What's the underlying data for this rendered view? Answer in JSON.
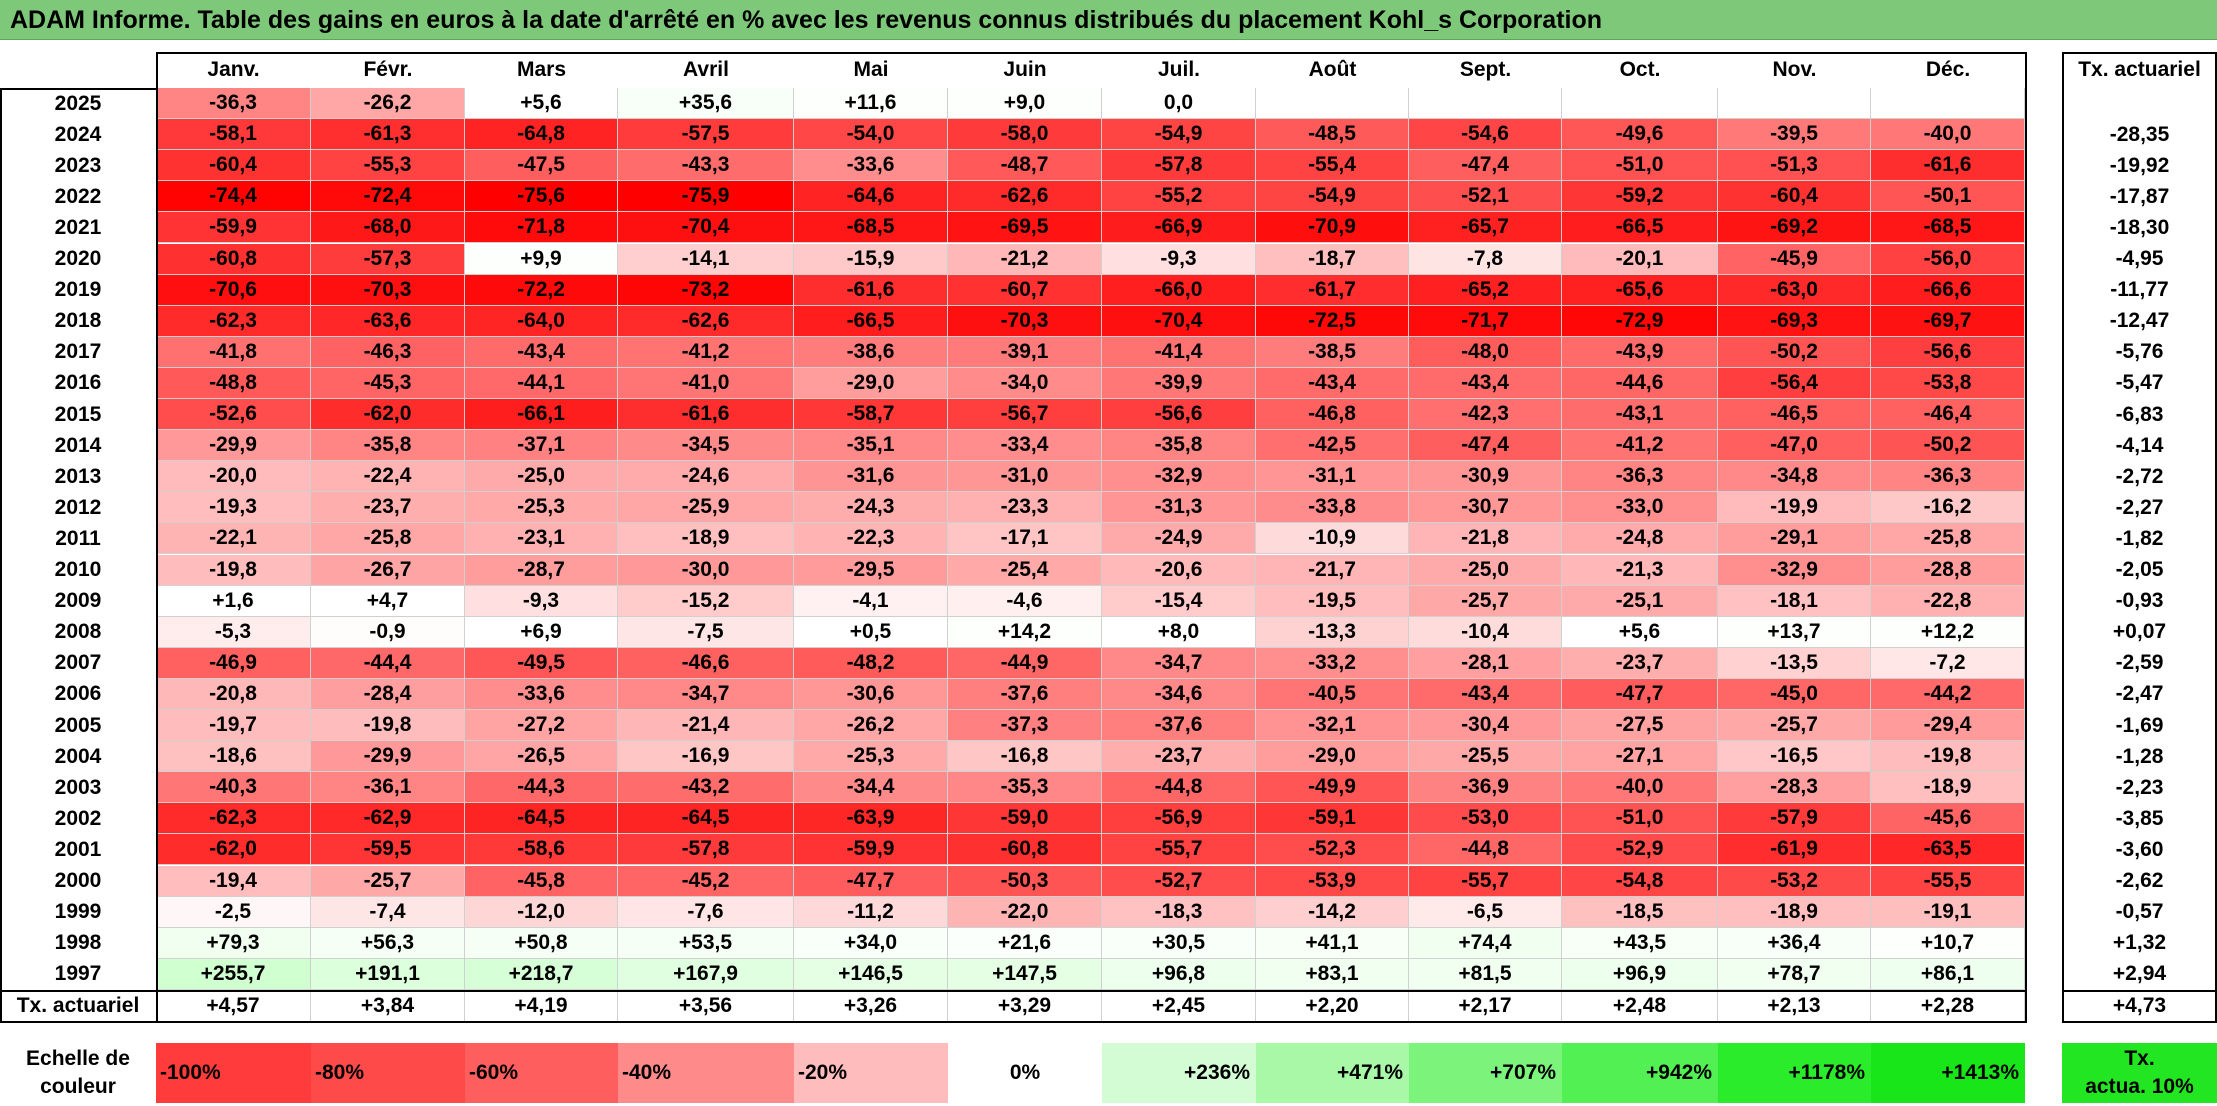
{
  "title": "ADAM Informe. Table des gains en euros à la date d'arrêté en % avec les revenus connus distribués du placement Kohl_s Corporation",
  "months": [
    "Janv.",
    "Févr.",
    "Mars",
    "Avril",
    "Mai",
    "Juin",
    "Juil.",
    "Août",
    "Sept.",
    "Oct.",
    "Nov.",
    "Déc."
  ],
  "right_header": "Tx. actuariel",
  "rows": [
    {
      "year": "2025",
      "values": [
        "-36,3",
        "-26,2",
        "+5,6",
        "+35,6",
        "+11,6",
        "+9,0",
        "0,0",
        "",
        "",
        "",
        "",
        ""
      ],
      "rate": ""
    },
    {
      "year": "2024",
      "values": [
        "-58,1",
        "-61,3",
        "-64,8",
        "-57,5",
        "-54,0",
        "-58,0",
        "-54,9",
        "-48,5",
        "-54,6",
        "-49,6",
        "-39,5",
        "-40,0"
      ],
      "rate": "-28,35"
    },
    {
      "year": "2023",
      "values": [
        "-60,4",
        "-55,3",
        "-47,5",
        "-43,3",
        "-33,6",
        "-48,7",
        "-57,8",
        "-55,4",
        "-47,4",
        "-51,0",
        "-51,3",
        "-61,6"
      ],
      "rate": "-19,92"
    },
    {
      "year": "2022",
      "values": [
        "-74,4",
        "-72,4",
        "-75,6",
        "-75,9",
        "-64,6",
        "-62,6",
        "-55,2",
        "-54,9",
        "-52,1",
        "-59,2",
        "-60,4",
        "-50,1"
      ],
      "rate": "-17,87"
    },
    {
      "year": "2021",
      "values": [
        "-59,9",
        "-68,0",
        "-71,8",
        "-70,4",
        "-68,5",
        "-69,5",
        "-66,9",
        "-70,9",
        "-65,7",
        "-66,5",
        "-69,2",
        "-68,5"
      ],
      "rate": "-18,30"
    },
    {
      "year": "2020",
      "values": [
        "-60,8",
        "-57,3",
        "+9,9",
        "-14,1",
        "-15,9",
        "-21,2",
        "-9,3",
        "-18,7",
        "-7,8",
        "-20,1",
        "-45,9",
        "-56,0"
      ],
      "rate": "-4,95"
    },
    {
      "year": "2019",
      "values": [
        "-70,6",
        "-70,3",
        "-72,2",
        "-73,2",
        "-61,6",
        "-60,7",
        "-66,0",
        "-61,7",
        "-65,2",
        "-65,6",
        "-63,0",
        "-66,6"
      ],
      "rate": "-11,77"
    },
    {
      "year": "2018",
      "values": [
        "-62,3",
        "-63,6",
        "-64,0",
        "-62,6",
        "-66,5",
        "-70,3",
        "-70,4",
        "-72,5",
        "-71,7",
        "-72,9",
        "-69,3",
        "-69,7"
      ],
      "rate": "-12,47"
    },
    {
      "year": "2017",
      "values": [
        "-41,8",
        "-46,3",
        "-43,4",
        "-41,2",
        "-38,6",
        "-39,1",
        "-41,4",
        "-38,5",
        "-48,0",
        "-43,9",
        "-50,2",
        "-56,6"
      ],
      "rate": "-5,76"
    },
    {
      "year": "2016",
      "values": [
        "-48,8",
        "-45,3",
        "-44,1",
        "-41,0",
        "-29,0",
        "-34,0",
        "-39,9",
        "-43,4",
        "-43,4",
        "-44,6",
        "-56,4",
        "-53,8"
      ],
      "rate": "-5,47"
    },
    {
      "year": "2015",
      "values": [
        "-52,6",
        "-62,0",
        "-66,1",
        "-61,6",
        "-58,7",
        "-56,7",
        "-56,6",
        "-46,8",
        "-42,3",
        "-43,1",
        "-46,5",
        "-46,4"
      ],
      "rate": "-6,83"
    },
    {
      "year": "2014",
      "values": [
        "-29,9",
        "-35,8",
        "-37,1",
        "-34,5",
        "-35,1",
        "-33,4",
        "-35,8",
        "-42,5",
        "-47,4",
        "-41,2",
        "-47,0",
        "-50,2"
      ],
      "rate": "-4,14"
    },
    {
      "year": "2013",
      "values": [
        "-20,0",
        "-22,4",
        "-25,0",
        "-24,6",
        "-31,6",
        "-31,0",
        "-32,9",
        "-31,1",
        "-30,9",
        "-36,3",
        "-34,8",
        "-36,3"
      ],
      "rate": "-2,72"
    },
    {
      "year": "2012",
      "values": [
        "-19,3",
        "-23,7",
        "-25,3",
        "-25,9",
        "-24,3",
        "-23,3",
        "-31,3",
        "-33,8",
        "-30,7",
        "-33,0",
        "-19,9",
        "-16,2"
      ],
      "rate": "-2,27"
    },
    {
      "year": "2011",
      "values": [
        "-22,1",
        "-25,8",
        "-23,1",
        "-18,9",
        "-22,3",
        "-17,1",
        "-24,9",
        "-10,9",
        "-21,8",
        "-24,8",
        "-29,1",
        "-25,8"
      ],
      "rate": "-1,82"
    },
    {
      "year": "2010",
      "values": [
        "-19,8",
        "-26,7",
        "-28,7",
        "-30,0",
        "-29,5",
        "-25,4",
        "-20,6",
        "-21,7",
        "-25,0",
        "-21,3",
        "-32,9",
        "-28,8"
      ],
      "rate": "-2,05"
    },
    {
      "year": "2009",
      "values": [
        "+1,6",
        "+4,7",
        "-9,3",
        "-15,2",
        "-4,1",
        "-4,6",
        "-15,4",
        "-19,5",
        "-25,7",
        "-25,1",
        "-18,1",
        "-22,8"
      ],
      "rate": "-0,93"
    },
    {
      "year": "2008",
      "values": [
        "-5,3",
        "-0,9",
        "+6,9",
        "-7,5",
        "+0,5",
        "+14,2",
        "+8,0",
        "-13,3",
        "-10,4",
        "+5,6",
        "+13,7",
        "+12,2"
      ],
      "rate": "+0,07"
    },
    {
      "year": "2007",
      "values": [
        "-46,9",
        "-44,4",
        "-49,5",
        "-46,6",
        "-48,2",
        "-44,9",
        "-34,7",
        "-33,2",
        "-28,1",
        "-23,7",
        "-13,5",
        "-7,2"
      ],
      "rate": "-2,59"
    },
    {
      "year": "2006",
      "values": [
        "-20,8",
        "-28,4",
        "-33,6",
        "-34,7",
        "-30,6",
        "-37,6",
        "-34,6",
        "-40,5",
        "-43,4",
        "-47,7",
        "-45,0",
        "-44,2"
      ],
      "rate": "-2,47"
    },
    {
      "year": "2005",
      "values": [
        "-19,7",
        "-19,8",
        "-27,2",
        "-21,4",
        "-26,2",
        "-37,3",
        "-37,6",
        "-32,1",
        "-30,4",
        "-27,5",
        "-25,7",
        "-29,4"
      ],
      "rate": "-1,69"
    },
    {
      "year": "2004",
      "values": [
        "-18,6",
        "-29,9",
        "-26,5",
        "-16,9",
        "-25,3",
        "-16,8",
        "-23,7",
        "-29,0",
        "-25,5",
        "-27,1",
        "-16,5",
        "-19,8"
      ],
      "rate": "-1,28"
    },
    {
      "year": "2003",
      "values": [
        "-40,3",
        "-36,1",
        "-44,3",
        "-43,2",
        "-34,4",
        "-35,3",
        "-44,8",
        "-49,9",
        "-36,9",
        "-40,0",
        "-28,3",
        "-18,9"
      ],
      "rate": "-2,23"
    },
    {
      "year": "2002",
      "values": [
        "-62,3",
        "-62,9",
        "-64,5",
        "-64,5",
        "-63,9",
        "-59,0",
        "-56,9",
        "-59,1",
        "-53,0",
        "-51,0",
        "-57,9",
        "-45,6"
      ],
      "rate": "-3,85"
    },
    {
      "year": "2001",
      "values": [
        "-62,0",
        "-59,5",
        "-58,6",
        "-57,8",
        "-59,9",
        "-60,8",
        "-55,7",
        "-52,3",
        "-44,8",
        "-52,9",
        "-61,9",
        "-63,5"
      ],
      "rate": "-3,60"
    },
    {
      "year": "2000",
      "values": [
        "-19,4",
        "-25,7",
        "-45,8",
        "-45,2",
        "-47,7",
        "-50,3",
        "-52,7",
        "-53,9",
        "-55,7",
        "-54,8",
        "-53,2",
        "-55,5"
      ],
      "rate": "-2,62"
    },
    {
      "year": "1999",
      "values": [
        "-2,5",
        "-7,4",
        "-12,0",
        "-7,6",
        "-11,2",
        "-22,0",
        "-18,3",
        "-14,2",
        "-6,5",
        "-18,5",
        "-18,9",
        "-19,1"
      ],
      "rate": "-0,57"
    },
    {
      "year": "1998",
      "values": [
        "+79,3",
        "+56,3",
        "+50,8",
        "+53,5",
        "+34,0",
        "+21,6",
        "+30,5",
        "+41,1",
        "+74,4",
        "+43,5",
        "+36,4",
        "+10,7"
      ],
      "rate": "+1,32"
    },
    {
      "year": "1997",
      "values": [
        "+255,7",
        "+191,1",
        "+218,7",
        "+167,9",
        "+146,5",
        "+147,5",
        "+96,8",
        "+83,1",
        "+81,5",
        "+96,9",
        "+78,7",
        "+86,1"
      ],
      "rate": "+2,94"
    }
  ],
  "footer": {
    "label": "Tx. actuariel",
    "values": [
      "+4,57",
      "+3,84",
      "+4,19",
      "+3,56",
      "+3,26",
      "+3,29",
      "+2,45",
      "+2,20",
      "+2,17",
      "+2,48",
      "+2,13",
      "+2,28"
    ],
    "rate": "+4,73"
  },
  "legend": {
    "label_line1": "Echelle de",
    "label_line2": "couleur",
    "items": [
      "-100%",
      "-80%",
      "-60%",
      "-40%",
      "-20%",
      "0%",
      "+236%",
      "+471%",
      "+707%",
      "+942%",
      "+1178%",
      "+1413%"
    ],
    "colors": [
      "#ff3b3b",
      "#ff4a4a",
      "#ff5e5e",
      "#ff8a8a",
      "#ffbcbc",
      "#ffffff",
      "#d4fcd4",
      "#a8f8a8",
      "#7cf47c",
      "#52f052",
      "#2aec2a",
      "#18e618"
    ],
    "right_line1": "Tx.",
    "right_line2": "actua. 10%",
    "right_color": "#22e622"
  },
  "colors": {
    "title_bg": "#7ec87a",
    "negative_base": "#ff0000",
    "positive_base": "#22dd22"
  }
}
